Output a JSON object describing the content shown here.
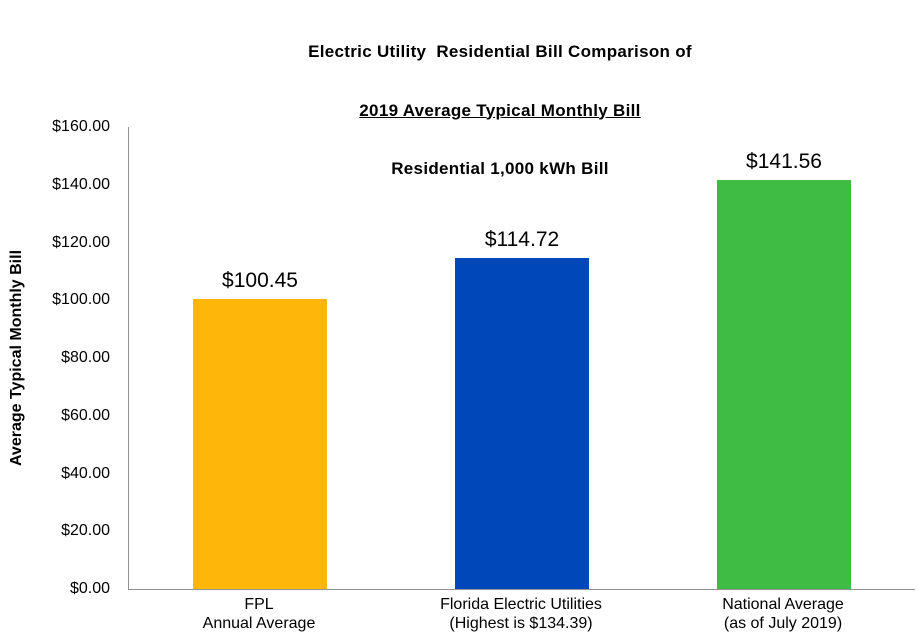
{
  "page": {
    "background_color": "#ffffff",
    "text_color": "#000000"
  },
  "chart_data": {
    "type": "bar",
    "title_lines": [
      "Electric Utility  Residential Bill Comparison of",
      "2019 Average Typical Monthly Bill",
      "Residential 1,000 kWh Bill"
    ],
    "title_line2_underlined": true,
    "ylabel": "Average Typical Monthly Bill",
    "xlabel": "",
    "ylim": [
      0,
      160
    ],
    "ytick_step": 20,
    "yticks": [
      "$0.00",
      "$20.00",
      "$40.00",
      "$60.00",
      "$80.00",
      "$100.00",
      "$120.00",
      "$140.00",
      "$160.00"
    ],
    "categories": [
      [
        "FPL",
        "Annual Average"
      ],
      [
        "Florida Electric Utilities",
        "(Highest is $134.39)"
      ],
      [
        "National Average",
        "(as of July 2019)"
      ]
    ],
    "values": [
      100.45,
      114.72,
      141.56
    ],
    "value_labels": [
      "$100.45",
      "$114.72",
      "$141.56"
    ],
    "bar_colors": [
      "#FFB60A",
      "#0047BA",
      "#3FBC44"
    ],
    "axis_color": "#919191",
    "grid": false,
    "legend": "none"
  }
}
